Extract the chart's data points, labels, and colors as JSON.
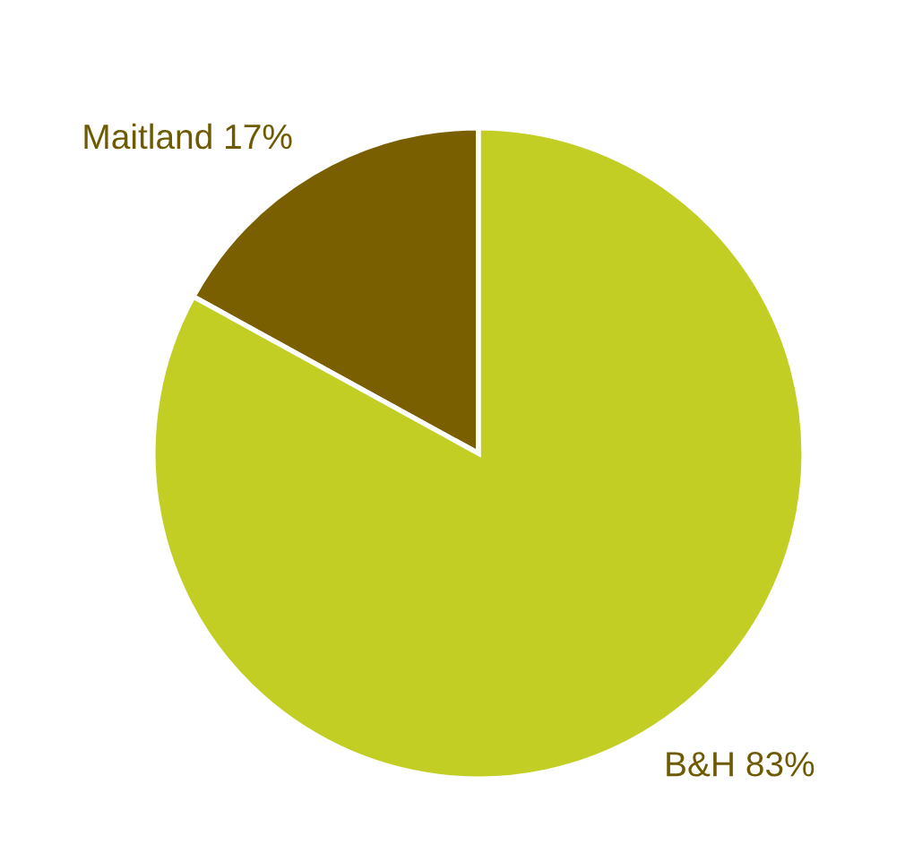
{
  "chart_data": {
    "type": "pie",
    "categories": [
      "Maitland",
      "B&H"
    ],
    "values": [
      17,
      83
    ],
    "value_labels": [
      "17%",
      "83%"
    ],
    "colors": [
      "#7a5f00",
      "#c2ce23"
    ],
    "legend": false
  }
}
